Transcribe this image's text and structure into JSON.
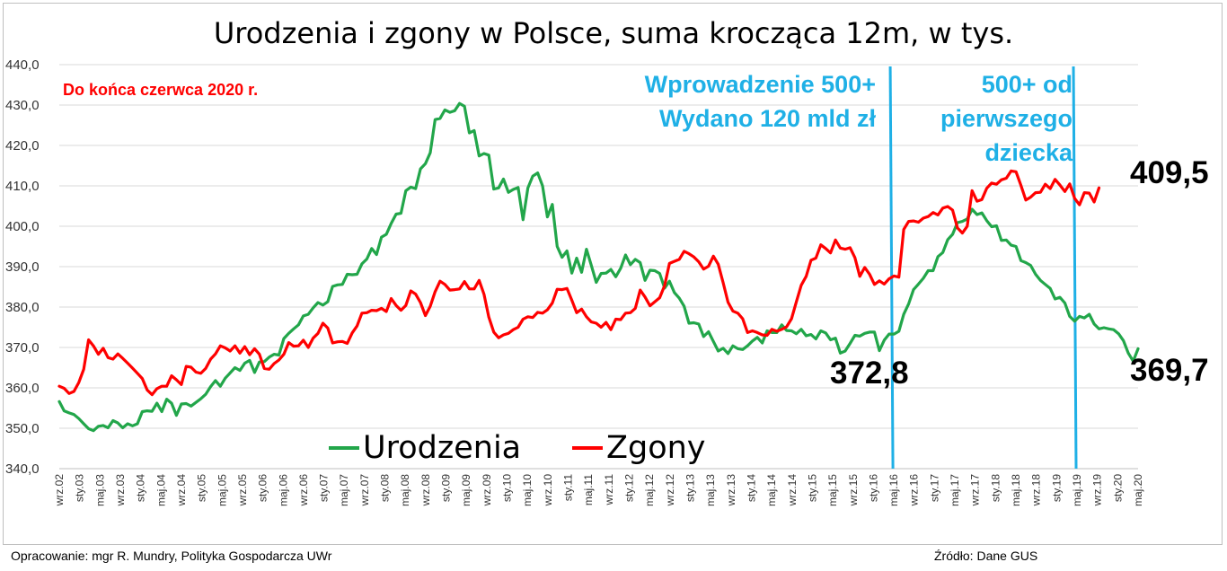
{
  "title": "Urodzenia i zgony w Polsce, suma krocząca 12m, w tys.",
  "note": "Do końca czerwca 2020 r.",
  "annotations": {
    "line1_text": [
      "Wprowadzenie 500+",
      "Wydano 120 mld zł"
    ],
    "line2_text": [
      "500+ od",
      "pierwszego",
      "dziecka"
    ],
    "line1_x": "maj.16",
    "line2_x": "maj.19",
    "color": "#1fb0e6"
  },
  "callouts": {
    "urodzenia_2016": "372,8",
    "zgony_last": "409,5",
    "urodzenia_last": "369,7"
  },
  "legend": {
    "urodzenia": "Urodzenia",
    "zgony": "Zgony"
  },
  "footer": {
    "left": "Opracowanie: mgr R. Mundry, Polityka Gospodarcza UWr",
    "right": "Źródło: Dane GUS"
  },
  "colors": {
    "urodzenia": "#22a64a",
    "zgony": "#ff0000",
    "grid": "#d9d9d9",
    "annotation": "#1fb0e6"
  },
  "chart_data": {
    "type": "line",
    "title": "Urodzenia i zgony w Polsce, suma krocząca 12m, w tys.",
    "ylim": [
      340,
      440
    ],
    "yticks": [
      "340,0",
      "350,0",
      "360,0",
      "370,0",
      "380,0",
      "390,0",
      "400,0",
      "410,0",
      "420,0",
      "430,0",
      "440,0"
    ],
    "grid": true,
    "legend_position": "bottom-left",
    "x_tick_labels": [
      "wrz.02",
      "sty.03",
      "maj.03",
      "wrz.03",
      "sty.04",
      "maj.04",
      "wrz.04",
      "sty.05",
      "maj.05",
      "wrz.05",
      "sty.06",
      "maj.06",
      "wrz.06",
      "sty.07",
      "maj.07",
      "wrz.07",
      "sty.08",
      "maj.08",
      "wrz.08",
      "sty.09",
      "maj.09",
      "wrz.09",
      "sty.10",
      "maj.10",
      "wrz.10",
      "sty.11",
      "maj.11",
      "wrz.11",
      "sty.12",
      "maj.12",
      "wrz.12",
      "sty.13",
      "maj.13",
      "wrz.13",
      "sty.14",
      "maj.14",
      "wrz.14",
      "sty.15",
      "maj.15",
      "wrz.15",
      "sty.16",
      "maj.16",
      "wrz.16",
      "sty.17",
      "maj.17",
      "wrz.17",
      "sty.18",
      "maj.18",
      "wrz.18",
      "sty.19",
      "maj.19",
      "wrz.19",
      "sty.20",
      "maj.20"
    ],
    "series": [
      {
        "name": "Urodzenia",
        "color": "#22a64a",
        "values": [
          356.6,
          354.3,
          353.8,
          353.4,
          352.4,
          351.1,
          349.9,
          349.4,
          350.5,
          350.7,
          350.1,
          351.9,
          351.3,
          350.1,
          351.1,
          350.6,
          351.1,
          354.1,
          354.3,
          354.2,
          356.2,
          354.1,
          357.2,
          356.2,
          353.2,
          356.0,
          356.1,
          355.5,
          356.4,
          357.3,
          358.4,
          360.3,
          361.8,
          360.4,
          362.4,
          363.7,
          365.0,
          364.3,
          366.1,
          366.8,
          363.8,
          366.4,
          366.5,
          367.6,
          368.3,
          368.1,
          372.2,
          373.5,
          374.6,
          375.6,
          377.8,
          378.2,
          379.8,
          381.1,
          380.5,
          381.3,
          385.1,
          385.5,
          385.6,
          388.1,
          388.0,
          388.1,
          390.7,
          391.9,
          394.5,
          393.0,
          397.3,
          398.0,
          400.7,
          403.0,
          403.2,
          408.8,
          409.7,
          409.3,
          414.2,
          415.5,
          418.2,
          426.4,
          426.7,
          428.8,
          428.2,
          428.6,
          430.4,
          429.7,
          423.1,
          423.7,
          417.4,
          418.0,
          417.6,
          409.2,
          409.5,
          411.7,
          408.4,
          409.1,
          409.6,
          401.6,
          409.5,
          412.4,
          413.2,
          410.0,
          402.3,
          405.4,
          395.0,
          392.3,
          393.9,
          388.4,
          392.1,
          388.6,
          394.3,
          390.3,
          386.1,
          388.3,
          388.4,
          389.3,
          387.5,
          389.6,
          392.9,
          390.5,
          391.8,
          391.0,
          386.6,
          389.1,
          389.0,
          388.3,
          384.7,
          386.4,
          383.6,
          382.2,
          380.2,
          376.0,
          376.1,
          375.8,
          372.7,
          373.9,
          371.5,
          369.1,
          369.8,
          368.5,
          370.4,
          369.7,
          369.5,
          370.4,
          371.6,
          372.5,
          371.1,
          374.1,
          373.7,
          373.7,
          375.6,
          374.2,
          374.1,
          373.4,
          374.5,
          372.9,
          373.2,
          372.1,
          374.1,
          373.6,
          371.9,
          372.3,
          368.6,
          369.1,
          371.0,
          373.0,
          372.8,
          373.5,
          373.8,
          373.8,
          369.2,
          371.8,
          373.3,
          373.3,
          374.0,
          378.2,
          380.8,
          384.3,
          385.7,
          387.1,
          389.0,
          389.0,
          392.5,
          393.5,
          396.7,
          398.0,
          400.9,
          401.2,
          401.8,
          404.2,
          402.9,
          403.3,
          401.4,
          399.9,
          400.1,
          396.5,
          396.6,
          395.3,
          395.0,
          391.5,
          391.0,
          390.3,
          388.1,
          386.6,
          385.6,
          384.6,
          382.0,
          382.4,
          381.0,
          377.7,
          376.5,
          377.7,
          377.3,
          378.2,
          375.8,
          374.6,
          374.9,
          374.6,
          374.4,
          373.4,
          371.7,
          368.6,
          366.6,
          369.7
        ]
      },
      {
        "name": "Zgony",
        "color": "#ff0000",
        "values": [
          360.4,
          359.9,
          358.6,
          359.1,
          361.3,
          364.6,
          371.9,
          370.4,
          368.3,
          369.8,
          367.5,
          367.1,
          368.4,
          367.3,
          366.1,
          364.9,
          363.6,
          362.3,
          359.5,
          358.3,
          359.8,
          360.4,
          360.4,
          363.0,
          362.0,
          360.8,
          365.3,
          365.1,
          363.9,
          363.6,
          364.8,
          367.1,
          368.4,
          370.4,
          369.9,
          369.1,
          370.4,
          368.6,
          370.2,
          368.2,
          369.7,
          368.3,
          364.8,
          364.6,
          366.0,
          366.9,
          368.3,
          371.2,
          370.3,
          370.4,
          371.8,
          370.0,
          372.3,
          373.5,
          376.0,
          374.8,
          371.1,
          371.4,
          371.5,
          371.0,
          373.6,
          375.3,
          378.5,
          378.6,
          379.2,
          379.1,
          379.7,
          378.9,
          382.1,
          380.4,
          379.2,
          380.4,
          384.0,
          383.2,
          381.1,
          377.9,
          380.2,
          383.8,
          386.4,
          385.6,
          384.2,
          384.3,
          384.5,
          386.3,
          384.5,
          384.5,
          386.6,
          383.2,
          377.5,
          373.8,
          372.4,
          373.1,
          373.5,
          374.4,
          375.0,
          377.0,
          377.6,
          377.4,
          378.7,
          378.5,
          379.3,
          381.0,
          384.4,
          384.3,
          384.6,
          381.7,
          378.6,
          379.5,
          377.6,
          376.3,
          376.0,
          375.0,
          376.2,
          374.4,
          377.0,
          376.9,
          378.5,
          378.6,
          379.7,
          384.2,
          382.5,
          380.3,
          381.3,
          382.3,
          385.3,
          390.8,
          391.3,
          391.8,
          393.8,
          393.2,
          392.4,
          391.2,
          389.4,
          390.1,
          392.6,
          390.6,
          386.0,
          381.2,
          379.0,
          378.5,
          377.1,
          373.7,
          374.1,
          373.7,
          373.1,
          373.0,
          374.5,
          374.0,
          374.5,
          375.1,
          377.1,
          381.3,
          385.4,
          387.6,
          391.6,
          392.1,
          395.4,
          394.5,
          393.4,
          396.6,
          394.6,
          394.3,
          394.7,
          392.2,
          387.6,
          389.8,
          388.1,
          385.6,
          386.5,
          385.7,
          387.0,
          387.7,
          387.4,
          399.2,
          401.2,
          401.3,
          401.0,
          402.0,
          402.4,
          403.4,
          402.8,
          404.5,
          404.9,
          404.0,
          399.6,
          398.3,
          400.0,
          408.8,
          406.2,
          406.6,
          409.4,
          410.7,
          410.4,
          411.5,
          411.9,
          413.7,
          413.5,
          410.1,
          406.5,
          407.2,
          408.3,
          408.4,
          410.4,
          409.3,
          411.6,
          410.2,
          408.6,
          410.5,
          406.9,
          405.3,
          408.3,
          408.2,
          406.0,
          409.5
        ]
      }
    ]
  }
}
